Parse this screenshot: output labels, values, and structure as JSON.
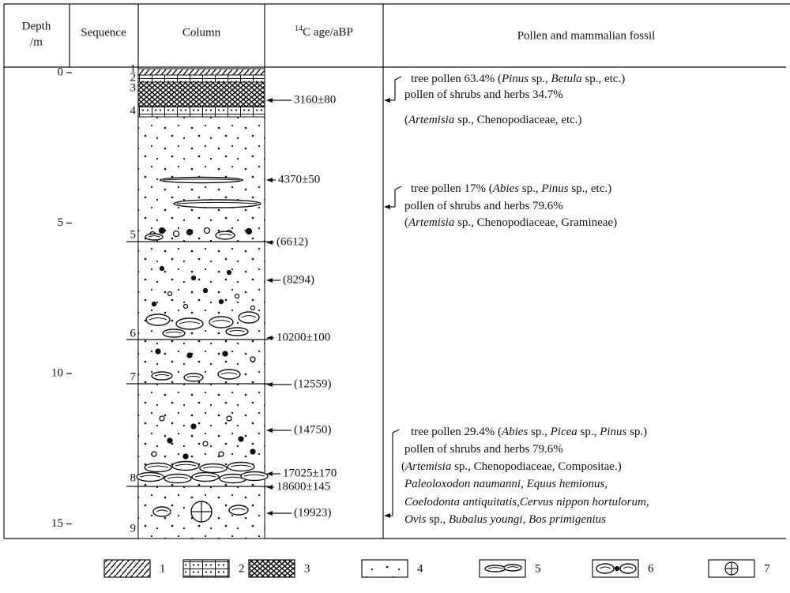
{
  "header": {
    "depth": [
      "Depth",
      "/m"
    ],
    "sequence": "Sequence",
    "column": "Column",
    "age": {
      "sup": "14",
      "text": "C age/aBP"
    },
    "pollen": "Pollen and mammalian fossil"
  },
  "depth_ticks": [
    0,
    5,
    10,
    15
  ],
  "sequence": [
    "1",
    "2",
    "3",
    "4",
    "5",
    "6",
    "7",
    "8",
    "9"
  ],
  "ages": [
    "3160±80",
    "4370±50",
    "(6612)",
    "(8294)",
    "10200±100",
    "(12559)",
    "(14750)",
    "17025±170",
    "18600±145",
    "(19923)"
  ],
  "pollen": [
    [
      [
        {
          "text": "tree pollen 63.4% ("
        },
        {
          "text": "Pinus",
          "italic": true
        },
        {
          "text": " sp., "
        },
        {
          "text": "Betula",
          "italic": true
        },
        {
          "text": " sp., etc.)"
        }
      ],
      [
        {
          "text": "pollen of shrubs and herbs 34.7%"
        }
      ],
      [
        {
          "text": "("
        },
        {
          "text": "Artemisia",
          "italic": true
        },
        {
          "text": " sp., Chenopodiaceae, etc.)"
        }
      ]
    ],
    [
      [
        {
          "text": "tree pollen 17% ("
        },
        {
          "text": "Abies",
          "italic": true
        },
        {
          "text": " sp., "
        },
        {
          "text": "Pinus",
          "italic": true
        },
        {
          "text": " sp., etc.)"
        }
      ],
      [
        {
          "text": "pollen of shrubs and herbs 79.6%"
        }
      ],
      [
        {
          "text": "("
        },
        {
          "text": "Artemisia",
          "italic": true
        },
        {
          "text": " sp., Chenopodiaceae, Gramineae)"
        }
      ]
    ],
    [
      [
        {
          "text": "tree pollen 29.4% ("
        },
        {
          "text": "Abies",
          "italic": true
        },
        {
          "text": " sp., "
        },
        {
          "text": "Picea",
          "italic": true
        },
        {
          "text": " sp., "
        },
        {
          "text": "Pinus",
          "italic": true
        },
        {
          "text": " sp.)"
        }
      ],
      [
        {
          "text": "pollen of shrubs and herbs 79.6%"
        }
      ],
      [
        {
          "text": "("
        },
        {
          "text": "Artemisia",
          "italic": true
        },
        {
          "text": " sp., Chenopodiaceae, Compositae.)"
        }
      ],
      [
        {
          "text": "Paleoloxodon naumanni, Equus hemionus,",
          "italic": true
        }
      ],
      [
        {
          "text": "Coelodonta antiquitatis,Cervus nippon hortulorum,",
          "italic": true
        }
      ],
      [
        {
          "text": "Ovis",
          "italic": true
        },
        {
          "text": " sp., "
        },
        {
          "text": "Bubalus youngi, Bos primigenius",
          "italic": true
        }
      ]
    ]
  ],
  "legend": [
    "1",
    "2",
    "3",
    "4",
    "5",
    "6",
    "7"
  ]
}
